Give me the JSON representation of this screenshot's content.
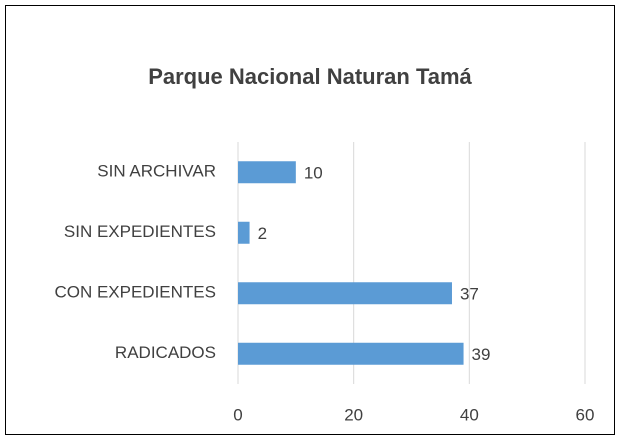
{
  "chart_data": {
    "type": "bar",
    "orientation": "horizontal",
    "title": "Parque Nacional Naturan Tamá",
    "categories": [
      "SIN ARCHIVAR",
      "SIN EXPEDIENTES",
      "CON EXPEDIENTES",
      "RADICADOS"
    ],
    "values": [
      10,
      2,
      37,
      39
    ],
    "color": "#5b9bd5",
    "xlim": [
      0,
      60
    ],
    "xticks": [
      0,
      20,
      40,
      60
    ],
    "grid": true
  }
}
